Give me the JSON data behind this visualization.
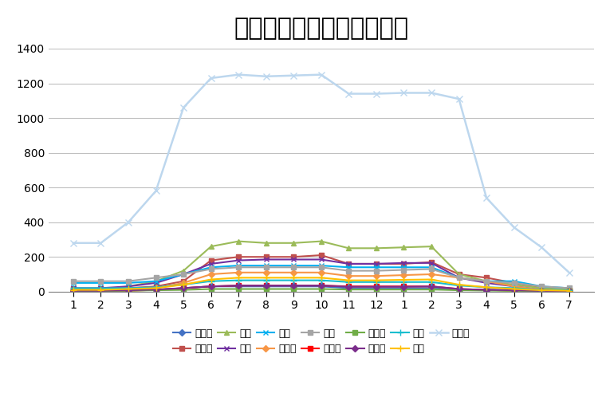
{
  "title": "劳动力动态分布二维折线图",
  "x_labels": [
    "1",
    "2",
    "3",
    "4",
    "5",
    "6",
    "7",
    "8",
    "9",
    "10",
    "11",
    "12",
    "1",
    "2",
    "3",
    "4",
    "5",
    "6",
    "7"
  ],
  "ylim": [
    0,
    1400
  ],
  "yticks": [
    0,
    200,
    400,
    600,
    800,
    1000,
    1200,
    1400
  ],
  "series": [
    {
      "name": "防水工",
      "color": "#4472C4",
      "marker": "D",
      "markersize": 4,
      "linewidth": 1.5,
      "values": [
        10,
        10,
        10,
        10,
        20,
        30,
        30,
        30,
        30,
        30,
        20,
        20,
        20,
        20,
        10,
        10,
        10,
        5,
        5
      ]
    },
    {
      "name": "钢筋工",
      "color": "#C0504D",
      "marker": "s",
      "markersize": 4,
      "linewidth": 1.5,
      "values": [
        15,
        15,
        20,
        30,
        60,
        180,
        200,
        200,
        200,
        210,
        160,
        160,
        160,
        170,
        100,
        80,
        50,
        20,
        10
      ]
    },
    {
      "name": "木工",
      "color": "#9BBB59",
      "marker": "^",
      "markersize": 5,
      "linewidth": 1.5,
      "values": [
        10,
        10,
        30,
        60,
        120,
        260,
        290,
        280,
        280,
        290,
        250,
        250,
        255,
        260,
        100,
        60,
        40,
        20,
        10
      ]
    },
    {
      "name": "泥工",
      "color": "#7030A0",
      "marker": "x",
      "markersize": 5,
      "linewidth": 1.5,
      "values": [
        20,
        20,
        30,
        50,
        100,
        160,
        180,
        185,
        185,
        185,
        160,
        160,
        165,
        165,
        80,
        50,
        30,
        10,
        5
      ]
    },
    {
      "name": "砼工",
      "color": "#00B0F0",
      "marker": "x",
      "markersize": 5,
      "linewidth": 1.5,
      "values": [
        50,
        50,
        50,
        60,
        100,
        140,
        150,
        150,
        150,
        150,
        140,
        140,
        140,
        140,
        80,
        60,
        60,
        30,
        20
      ]
    },
    {
      "name": "架子工",
      "color": "#F79646",
      "marker": "D",
      "markersize": 4,
      "linewidth": 1.5,
      "values": [
        5,
        5,
        10,
        20,
        50,
        100,
        110,
        110,
        110,
        110,
        90,
        90,
        95,
        100,
        80,
        60,
        30,
        10,
        5
      ]
    },
    {
      "name": "焊工",
      "color": "#A5A5A5",
      "marker": "s",
      "markersize": 4,
      "linewidth": 1.5,
      "values": [
        60,
        60,
        60,
        80,
        100,
        130,
        140,
        140,
        140,
        140,
        120,
        120,
        125,
        130,
        80,
        60,
        50,
        30,
        20
      ]
    },
    {
      "name": "信号工",
      "color": "#FF0000",
      "marker": "s",
      "markersize": 4,
      "linewidth": 1.5,
      "values": [
        5,
        5,
        5,
        10,
        20,
        30,
        35,
        35,
        35,
        35,
        30,
        30,
        30,
        30,
        15,
        10,
        5,
        5,
        3
      ]
    },
    {
      "name": "测量工",
      "color": "#70AD47",
      "marker": "s",
      "markersize": 4,
      "linewidth": 1.5,
      "values": [
        3,
        3,
        5,
        8,
        10,
        15,
        15,
        15,
        15,
        15,
        12,
        12,
        12,
        12,
        8,
        6,
        4,
        3,
        2
      ]
    },
    {
      "name": "水暖工",
      "color": "#7B2D8B",
      "marker": "D",
      "markersize": 4,
      "linewidth": 1.5,
      "values": [
        5,
        5,
        8,
        12,
        20,
        30,
        35,
        35,
        35,
        35,
        28,
        28,
        28,
        30,
        15,
        10,
        8,
        4,
        3
      ]
    },
    {
      "name": "电工",
      "color": "#17BECF",
      "marker": "+",
      "markersize": 6,
      "linewidth": 1.5,
      "values": [
        20,
        20,
        20,
        25,
        40,
        60,
        65,
        65,
        65,
        65,
        55,
        55,
        55,
        55,
        35,
        25,
        20,
        10,
        8
      ]
    },
    {
      "name": "杂工",
      "color": "#FFC000",
      "marker": "+",
      "markersize": 6,
      "linewidth": 1.5,
      "values": [
        10,
        10,
        15,
        20,
        40,
        70,
        80,
        80,
        80,
        80,
        65,
        65,
        68,
        70,
        40,
        25,
        15,
        8,
        5
      ]
    },
    {
      "name": "月汇总",
      "color": "#BDD7EE",
      "marker": "x",
      "markersize": 6,
      "linewidth": 1.8,
      "values": [
        280,
        280,
        400,
        580,
        1060,
        1230,
        1250,
        1240,
        1245,
        1250,
        1140,
        1140,
        1145,
        1145,
        1110,
        540,
        370,
        255,
        110
      ]
    }
  ],
  "background_color": "#FFFFFF",
  "grid_color": "#C0C0C0",
  "title_fontsize": 22,
  "tick_fontsize": 10,
  "legend_fontsize": 9
}
